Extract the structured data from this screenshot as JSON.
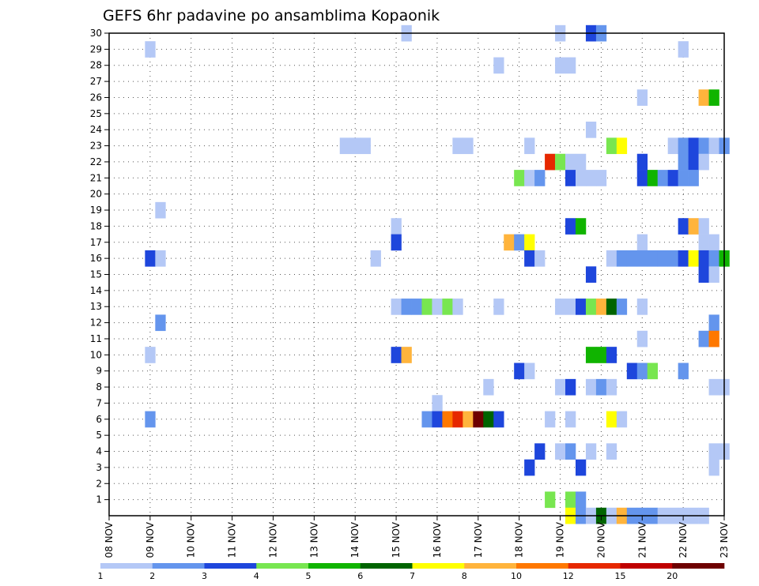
{
  "chart_data": {
    "type": "heatmap",
    "title": "GEFS 6hr padavine po ansamblima Kopaonik",
    "xlabel": "",
    "ylabel": "",
    "grid": true,
    "x_start": "08 NOV",
    "x_step_hours": 6,
    "x_steps": 60,
    "xticks": [
      "08 NOV",
      "09 NOV",
      "10 NOV",
      "11 NOV",
      "12 NOV",
      "13 NOV",
      "14 NOV",
      "15 NOV",
      "16 NOV",
      "17 NOV",
      "18 NOV",
      "19 NOV",
      "20 NOV",
      "21 NOV",
      "22 NOV",
      "23 NOV"
    ],
    "yticks": [
      "1",
      "2",
      "3",
      "4",
      "5",
      "6",
      "7",
      "8",
      "9",
      "10",
      "11",
      "12",
      "13",
      "14",
      "15",
      "16",
      "17",
      "18",
      "19",
      "20",
      "21",
      "22",
      "23",
      "24",
      "25",
      "26",
      "27",
      "28",
      "29",
      "30"
    ],
    "ylim": [
      0,
      30
    ],
    "colorbar": {
      "labels": [
        "1",
        "2",
        "3",
        "4",
        "5",
        "6",
        "7",
        "8",
        "10",
        "12",
        "15",
        "20"
      ],
      "colors": [
        "#b4c8f6",
        "#6495ed",
        "#1e46dc",
        "#78e650",
        "#10b400",
        "#006400",
        "#ffff00",
        "#ffb43c",
        "#ff7800",
        "#e62800",
        "#c00000",
        "#6e0000"
      ]
    },
    "cells": [
      {
        "m": 30,
        "t": [
          [
            29,
            1
          ],
          [
            44,
            1
          ],
          [
            47,
            3
          ],
          [
            48,
            2
          ]
        ]
      },
      {
        "m": 29,
        "t": [
          [
            4,
            1
          ],
          [
            56,
            1
          ]
        ]
      },
      {
        "m": 28,
        "t": [
          [
            38,
            1
          ],
          [
            44,
            1
          ],
          [
            45,
            1
          ]
        ]
      },
      {
        "m": 26,
        "t": [
          [
            52,
            1
          ],
          [
            58,
            8
          ],
          [
            59,
            5
          ]
        ]
      },
      {
        "m": 24,
        "t": [
          [
            47,
            1
          ]
        ]
      },
      {
        "m": 23,
        "t": [
          [
            23,
            1
          ],
          [
            24,
            1
          ],
          [
            25,
            1
          ],
          [
            34,
            1
          ],
          [
            35,
            1
          ],
          [
            41,
            1
          ],
          [
            49,
            4
          ],
          [
            50,
            7
          ],
          [
            55,
            1
          ],
          [
            56,
            2
          ],
          [
            57,
            3
          ],
          [
            58,
            2
          ],
          [
            59,
            1
          ],
          [
            60,
            2
          ]
        ]
      },
      {
        "m": 22,
        "t": [
          [
            43,
            10
          ],
          [
            44,
            4
          ],
          [
            45,
            1
          ],
          [
            46,
            1
          ],
          [
            52,
            3
          ],
          [
            56,
            2
          ],
          [
            57,
            3
          ],
          [
            58,
            1
          ]
        ]
      },
      {
        "m": 21,
        "t": [
          [
            40,
            4
          ],
          [
            41,
            1
          ],
          [
            42,
            2
          ],
          [
            45,
            3
          ],
          [
            46,
            1
          ],
          [
            47,
            1
          ],
          [
            48,
            1
          ],
          [
            52,
            3
          ],
          [
            53,
            5
          ],
          [
            54,
            2
          ],
          [
            55,
            3
          ],
          [
            56,
            2
          ],
          [
            57,
            2
          ]
        ]
      },
      {
        "m": 19,
        "t": [
          [
            5,
            1
          ]
        ]
      },
      {
        "m": 18,
        "t": [
          [
            28,
            1
          ],
          [
            45,
            3
          ],
          [
            46,
            5
          ],
          [
            56,
            3
          ],
          [
            57,
            8
          ],
          [
            58,
            1
          ]
        ]
      },
      {
        "m": 17,
        "t": [
          [
            28,
            3
          ],
          [
            39,
            8
          ],
          [
            40,
            2
          ],
          [
            41,
            7
          ],
          [
            52,
            1
          ],
          [
            58,
            1
          ],
          [
            59,
            1
          ]
        ]
      },
      {
        "m": 16,
        "t": [
          [
            4,
            3
          ],
          [
            5,
            1
          ],
          [
            26,
            1
          ],
          [
            41,
            3
          ],
          [
            42,
            1
          ],
          [
            49,
            1
          ],
          [
            50,
            2
          ],
          [
            51,
            2
          ],
          [
            52,
            2
          ],
          [
            53,
            2
          ],
          [
            54,
            2
          ],
          [
            55,
            2
          ],
          [
            56,
            3
          ],
          [
            57,
            7
          ],
          [
            58,
            3
          ],
          [
            59,
            2
          ],
          [
            60,
            5
          ]
        ]
      },
      {
        "m": 15,
        "t": [
          [
            47,
            3
          ],
          [
            58,
            3
          ],
          [
            59,
            1
          ]
        ]
      },
      {
        "m": 13,
        "t": [
          [
            28,
            1
          ],
          [
            29,
            2
          ],
          [
            30,
            2
          ],
          [
            31,
            4
          ],
          [
            32,
            1
          ],
          [
            33,
            4
          ],
          [
            34,
            1
          ],
          [
            38,
            1
          ],
          [
            44,
            1
          ],
          [
            45,
            1
          ],
          [
            46,
            3
          ],
          [
            47,
            4
          ],
          [
            48,
            8
          ],
          [
            49,
            6
          ],
          [
            50,
            2
          ],
          [
            52,
            1
          ]
        ]
      },
      {
        "m": 12,
        "t": [
          [
            5,
            2
          ],
          [
            59,
            2
          ]
        ]
      },
      {
        "m": 11,
        "t": [
          [
            52,
            1
          ],
          [
            58,
            2
          ],
          [
            59,
            9
          ]
        ]
      },
      {
        "m": 10,
        "t": [
          [
            4,
            1
          ],
          [
            28,
            3
          ],
          [
            29,
            8
          ],
          [
            47,
            5
          ],
          [
            48,
            5
          ],
          [
            49,
            3
          ]
        ]
      },
      {
        "m": 9,
        "t": [
          [
            40,
            3
          ],
          [
            41,
            1
          ],
          [
            51,
            3
          ],
          [
            52,
            2
          ],
          [
            53,
            4
          ],
          [
            56,
            2
          ]
        ]
      },
      {
        "m": 8,
        "t": [
          [
            37,
            1
          ],
          [
            44,
            1
          ],
          [
            45,
            3
          ],
          [
            47,
            1
          ],
          [
            48,
            2
          ],
          [
            49,
            1
          ],
          [
            59,
            1
          ],
          [
            60,
            1
          ]
        ]
      },
      {
        "m": 7,
        "t": [
          [
            32,
            1
          ]
        ]
      },
      {
        "m": 6,
        "t": [
          [
            4,
            2
          ],
          [
            31,
            2
          ],
          [
            32,
            3
          ],
          [
            33,
            9
          ],
          [
            34,
            10
          ],
          [
            35,
            8
          ],
          [
            36,
            12
          ],
          [
            37,
            6
          ],
          [
            38,
            3
          ],
          [
            43,
            1
          ],
          [
            45,
            1
          ],
          [
            49,
            7
          ],
          [
            50,
            1
          ]
        ]
      },
      {
        "m": 4,
        "t": [
          [
            42,
            3
          ],
          [
            44,
            1
          ],
          [
            45,
            2
          ],
          [
            47,
            1
          ],
          [
            49,
            1
          ],
          [
            59,
            1
          ],
          [
            60,
            1
          ]
        ]
      },
      {
        "m": 3,
        "t": [
          [
            41,
            3
          ],
          [
            46,
            3
          ],
          [
            59,
            1
          ]
        ]
      },
      {
        "m": 1,
        "t": [
          [
            43,
            4
          ],
          [
            45,
            4
          ],
          [
            46,
            2
          ]
        ]
      },
      {
        "m": 0,
        "t": [
          [
            45,
            7
          ],
          [
            46,
            2
          ],
          [
            47,
            1
          ],
          [
            48,
            6
          ],
          [
            49,
            1
          ],
          [
            50,
            8
          ],
          [
            51,
            2
          ],
          [
            52,
            2
          ],
          [
            53,
            2
          ],
          [
            54,
            1
          ],
          [
            55,
            1
          ],
          [
            56,
            1
          ],
          [
            57,
            1
          ],
          [
            58,
            1
          ]
        ]
      }
    ]
  }
}
